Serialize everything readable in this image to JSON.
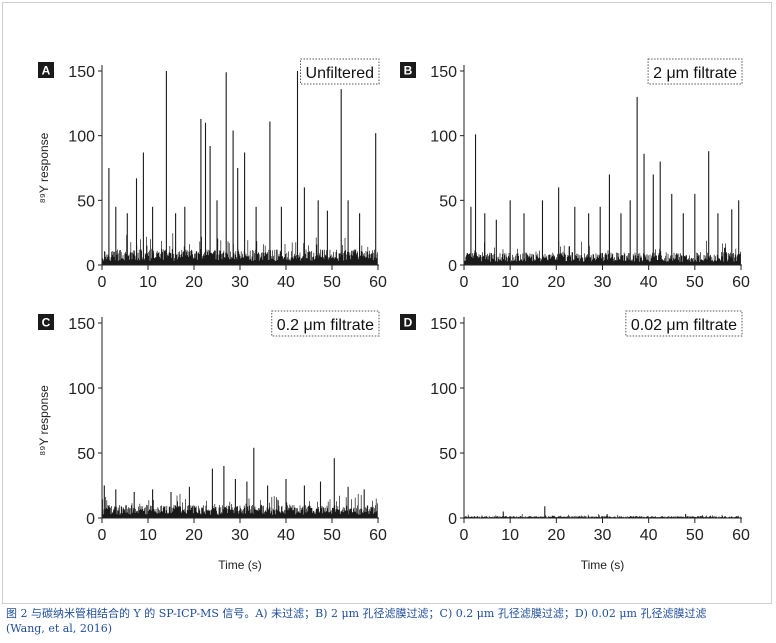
{
  "caption": {
    "line1": "图 2  与碳纳米管相结合的 Y 的 SP-ICP-MS 信号。A) 未过滤；B) 2 μm 孔径滤膜过滤；C) 0.2 μm 孔径滤膜过滤；D) 0.02 μm 孔径滤膜过滤",
    "line2": "(Wang, et al, 2016)"
  },
  "colors": {
    "trace": "#1a1a1a",
    "axis": "#222222",
    "caption": "#1f4e9c",
    "badge": "#1a1a1a"
  },
  "chart_data": [
    {
      "panel": "A",
      "type": "line",
      "legend": "Unfiltered",
      "ylabel": "⁸⁹Y response",
      "xlabel": "",
      "xlim": [
        0,
        60
      ],
      "ylim": [
        0,
        150
      ],
      "xticks": [
        0,
        10,
        20,
        30,
        40,
        50,
        60
      ],
      "yticks": [
        0,
        50,
        100,
        150
      ],
      "noise_level": 12,
      "peaks": [
        {
          "x": 1.5,
          "y": 75
        },
        {
          "x": 3,
          "y": 45
        },
        {
          "x": 5.5,
          "y": 40
        },
        {
          "x": 7.5,
          "y": 67
        },
        {
          "x": 9,
          "y": 87
        },
        {
          "x": 11,
          "y": 45
        },
        {
          "x": 14,
          "y": 150
        },
        {
          "x": 16,
          "y": 40
        },
        {
          "x": 18,
          "y": 45
        },
        {
          "x": 21.5,
          "y": 113
        },
        {
          "x": 22.5,
          "y": 110
        },
        {
          "x": 23.5,
          "y": 92
        },
        {
          "x": 25,
          "y": 50
        },
        {
          "x": 27,
          "y": 149
        },
        {
          "x": 28.5,
          "y": 104
        },
        {
          "x": 29.5,
          "y": 75
        },
        {
          "x": 31,
          "y": 87
        },
        {
          "x": 33.5,
          "y": 45
        },
        {
          "x": 36.5,
          "y": 111
        },
        {
          "x": 39,
          "y": 45
        },
        {
          "x": 42.5,
          "y": 150
        },
        {
          "x": 44,
          "y": 60
        },
        {
          "x": 47,
          "y": 50
        },
        {
          "x": 49,
          "y": 42
        },
        {
          "x": 52,
          "y": 136
        },
        {
          "x": 53.5,
          "y": 50
        },
        {
          "x": 56,
          "y": 40
        },
        {
          "x": 59.5,
          "y": 102
        }
      ]
    },
    {
      "panel": "B",
      "type": "line",
      "legend": "2 μm filtrate",
      "ylabel": "",
      "xlabel": "",
      "xlim": [
        0,
        60
      ],
      "ylim": [
        0,
        150
      ],
      "xticks": [
        0,
        10,
        20,
        30,
        40,
        50,
        60
      ],
      "yticks": [
        0,
        50,
        100,
        150
      ],
      "noise_level": 10,
      "peaks": [
        {
          "x": 1.5,
          "y": 45
        },
        {
          "x": 2.5,
          "y": 101
        },
        {
          "x": 4.5,
          "y": 40
        },
        {
          "x": 7,
          "y": 35
        },
        {
          "x": 10,
          "y": 50
        },
        {
          "x": 13,
          "y": 40
        },
        {
          "x": 17,
          "y": 50
        },
        {
          "x": 20.5,
          "y": 60
        },
        {
          "x": 24,
          "y": 45
        },
        {
          "x": 27,
          "y": 40
        },
        {
          "x": 29.5,
          "y": 45
        },
        {
          "x": 31.5,
          "y": 70
        },
        {
          "x": 34,
          "y": 40
        },
        {
          "x": 36,
          "y": 50
        },
        {
          "x": 37.5,
          "y": 130
        },
        {
          "x": 39,
          "y": 86
        },
        {
          "x": 41,
          "y": 70
        },
        {
          "x": 42.5,
          "y": 80
        },
        {
          "x": 45,
          "y": 55
        },
        {
          "x": 47.5,
          "y": 40
        },
        {
          "x": 50,
          "y": 55
        },
        {
          "x": 53,
          "y": 88
        },
        {
          "x": 55,
          "y": 40
        },
        {
          "x": 58,
          "y": 43
        },
        {
          "x": 59.5,
          "y": 50
        }
      ]
    },
    {
      "panel": "C",
      "type": "line",
      "legend": "0.2 μm filtrate",
      "ylabel": "⁸⁹Y response",
      "xlabel": "Time (s)",
      "xlim": [
        0,
        60
      ],
      "ylim": [
        0,
        150
      ],
      "xticks": [
        0,
        10,
        20,
        30,
        40,
        50,
        60
      ],
      "yticks": [
        0,
        50,
        100,
        150
      ],
      "noise_level": 10,
      "peaks": [
        {
          "x": 0.5,
          "y": 25
        },
        {
          "x": 3,
          "y": 22
        },
        {
          "x": 7,
          "y": 20
        },
        {
          "x": 11,
          "y": 22
        },
        {
          "x": 15,
          "y": 20
        },
        {
          "x": 19,
          "y": 24
        },
        {
          "x": 24,
          "y": 38
        },
        {
          "x": 26.5,
          "y": 40
        },
        {
          "x": 29,
          "y": 30
        },
        {
          "x": 31.5,
          "y": 28
        },
        {
          "x": 33,
          "y": 54
        },
        {
          "x": 36,
          "y": 25
        },
        {
          "x": 40,
          "y": 30
        },
        {
          "x": 44,
          "y": 25
        },
        {
          "x": 47.5,
          "y": 28
        },
        {
          "x": 50.5,
          "y": 46
        },
        {
          "x": 53.5,
          "y": 24
        },
        {
          "x": 57,
          "y": 22
        }
      ]
    },
    {
      "panel": "D",
      "type": "line",
      "legend": "0.02 μm filtrate",
      "ylabel": "",
      "xlabel": "Time (s)",
      "xlim": [
        0,
        60
      ],
      "ylim": [
        0,
        150
      ],
      "xticks": [
        0,
        10,
        20,
        30,
        40,
        50,
        60
      ],
      "yticks": [
        0,
        50,
        100,
        150
      ],
      "noise_level": 1.5,
      "peaks": [
        {
          "x": 8.5,
          "y": 5
        },
        {
          "x": 17.5,
          "y": 9
        },
        {
          "x": 31,
          "y": 3
        },
        {
          "x": 48,
          "y": 3
        }
      ]
    }
  ]
}
